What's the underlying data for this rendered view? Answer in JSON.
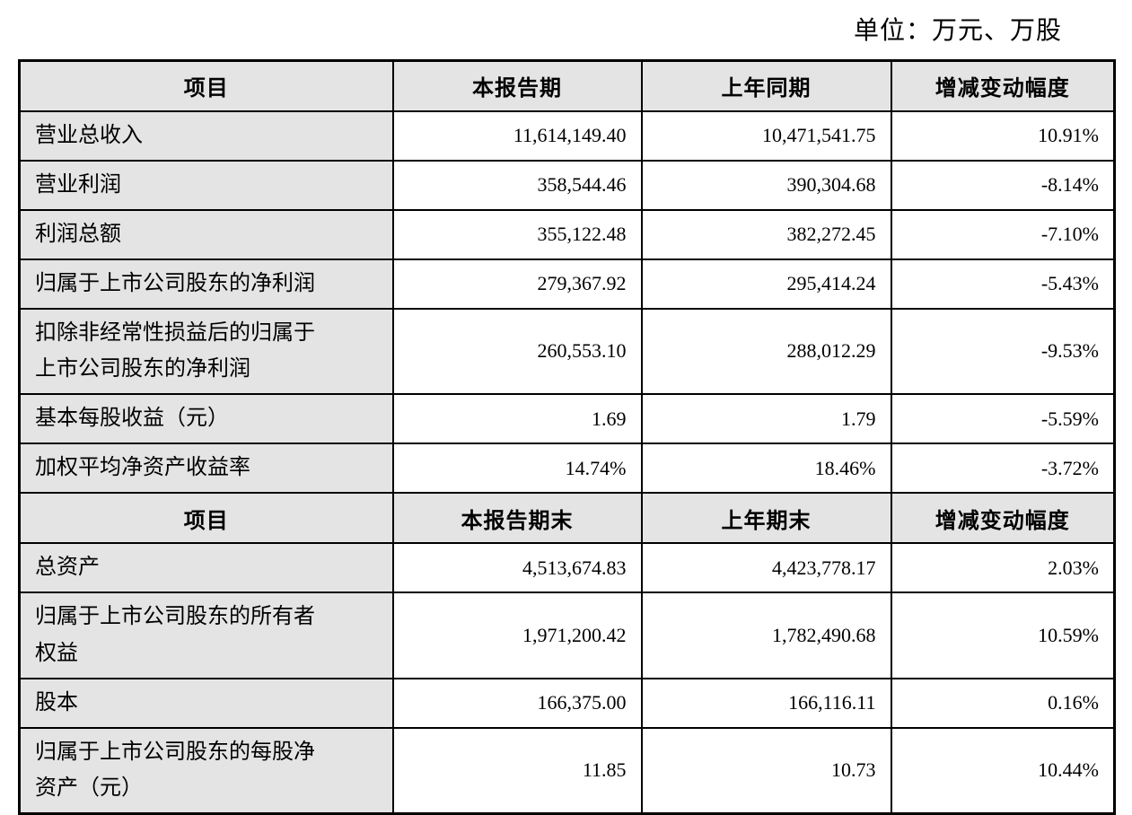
{
  "unit_note": "单位：万元、万股",
  "colors": {
    "header_bg": "#e4e4e4",
    "item_col_bg": "#e4e4e4",
    "border": "#000000",
    "text": "#000000"
  },
  "sections": [
    {
      "headers": [
        "项目",
        "本报告期",
        "上年同期",
        "增减变动幅度"
      ],
      "rows": [
        {
          "item": "营业总收入",
          "current": "11,614,149.40",
          "prior": "10,471,541.75",
          "change": "10.91%"
        },
        {
          "item": "营业利润",
          "current": "358,544.46",
          "prior": "390,304.68",
          "change": "-8.14%"
        },
        {
          "item": "利润总额",
          "current": "355,122.48",
          "prior": "382,272.45",
          "change": "-7.10%"
        },
        {
          "item": "归属于上市公司股东的净利润",
          "current": "279,367.92",
          "prior": "295,414.24",
          "change": "-5.43%"
        },
        {
          "item": "扣除非经常性损益后的归属于\n上市公司股东的净利润",
          "current": "260,553.10",
          "prior": "288,012.29",
          "change": "-9.53%"
        },
        {
          "item": "基本每股收益（元）",
          "current": "1.69",
          "prior": "1.79",
          "change": "-5.59%"
        },
        {
          "item": "加权平均净资产收益率",
          "current": "14.74%",
          "prior": "18.46%",
          "change": "-3.72%"
        }
      ]
    },
    {
      "headers": [
        "项目",
        "本报告期末",
        "上年期末",
        "增减变动幅度"
      ],
      "rows": [
        {
          "item": "总资产",
          "current": "4,513,674.83",
          "prior": "4,423,778.17",
          "change": "2.03%"
        },
        {
          "item": "归属于上市公司股东的所有者\n权益",
          "current": "1,971,200.42",
          "prior": "1,782,490.68",
          "change": "10.59%"
        },
        {
          "item": "股本",
          "current": "166,375.00",
          "prior": "166,116.11",
          "change": "0.16%"
        },
        {
          "item": "归属于上市公司股东的每股净\n资产（元）",
          "current": "11.85",
          "prior": "10.73",
          "change": "10.44%"
        }
      ]
    }
  ]
}
